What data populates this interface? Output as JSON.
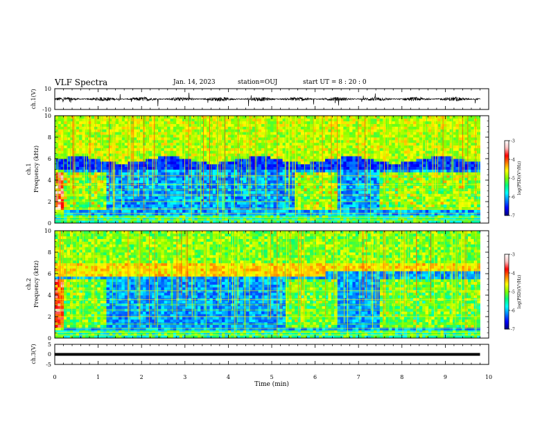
{
  "header": {
    "title": "VLF Spectra",
    "date": "Jan. 14, 2023",
    "station": "station=OUJ",
    "start_ut": "start UT =  8 : 20 : 0"
  },
  "colors": {
    "colormap": [
      "#000080",
      "#0000ff",
      "#0080ff",
      "#00ffff",
      "#00ff80",
      "#80ff00",
      "#ffff00",
      "#ff8000",
      "#ff0000",
      "#ffc0c0",
      "#ffffff"
    ]
  },
  "chart_data": [
    {
      "type": "line",
      "ylabel": "ch.1(V)",
      "ylim": [
        -10,
        10
      ],
      "yticks": [
        "10",
        "-10"
      ],
      "description_values": {
        "baseline": 0,
        "typical_amplitude": 2
      }
    },
    {
      "type": "heatmap",
      "ylabel": "ch.1 Frequency (kHz)",
      "xlim": [
        0,
        10
      ],
      "ylim": [
        0,
        10
      ],
      "yticks": [
        "0",
        "2",
        "4",
        "6",
        "8",
        "10"
      ],
      "colorbar": {
        "label": "log(PSD)(V²/Hz)",
        "range": [
          -7,
          -3
        ],
        "ticks": [
          "-3",
          "-4",
          "-5",
          "-6",
          "-7"
        ]
      },
      "data_end_min": 9.8
    },
    {
      "type": "heatmap",
      "ylabel": "ch.2 Frequency (kHz)",
      "xlim": [
        0,
        10
      ],
      "ylim": [
        0,
        10
      ],
      "yticks": [
        "0",
        "2",
        "4",
        "6",
        "8",
        "10"
      ],
      "colorbar": {
        "label": "log(PSD)(V²/Hz)",
        "range": [
          -7,
          -3
        ],
        "ticks": [
          "-3",
          "-4",
          "-5",
          "-6",
          "-7"
        ]
      },
      "data_end_min": 9.8
    },
    {
      "type": "line",
      "ylabel": "ch.3(V)",
      "ylim": [
        -5,
        5
      ],
      "yticks": [
        "5",
        "0",
        "-5"
      ],
      "xlabel": "Time (min)",
      "xlim": [
        0,
        10
      ],
      "xticks": [
        "0",
        "1",
        "2",
        "3",
        "4",
        "5",
        "6",
        "7",
        "8",
        "9",
        "10"
      ],
      "series": [
        {
          "x": [
            0,
            9.8
          ],
          "y": [
            0,
            0
          ]
        }
      ]
    }
  ]
}
